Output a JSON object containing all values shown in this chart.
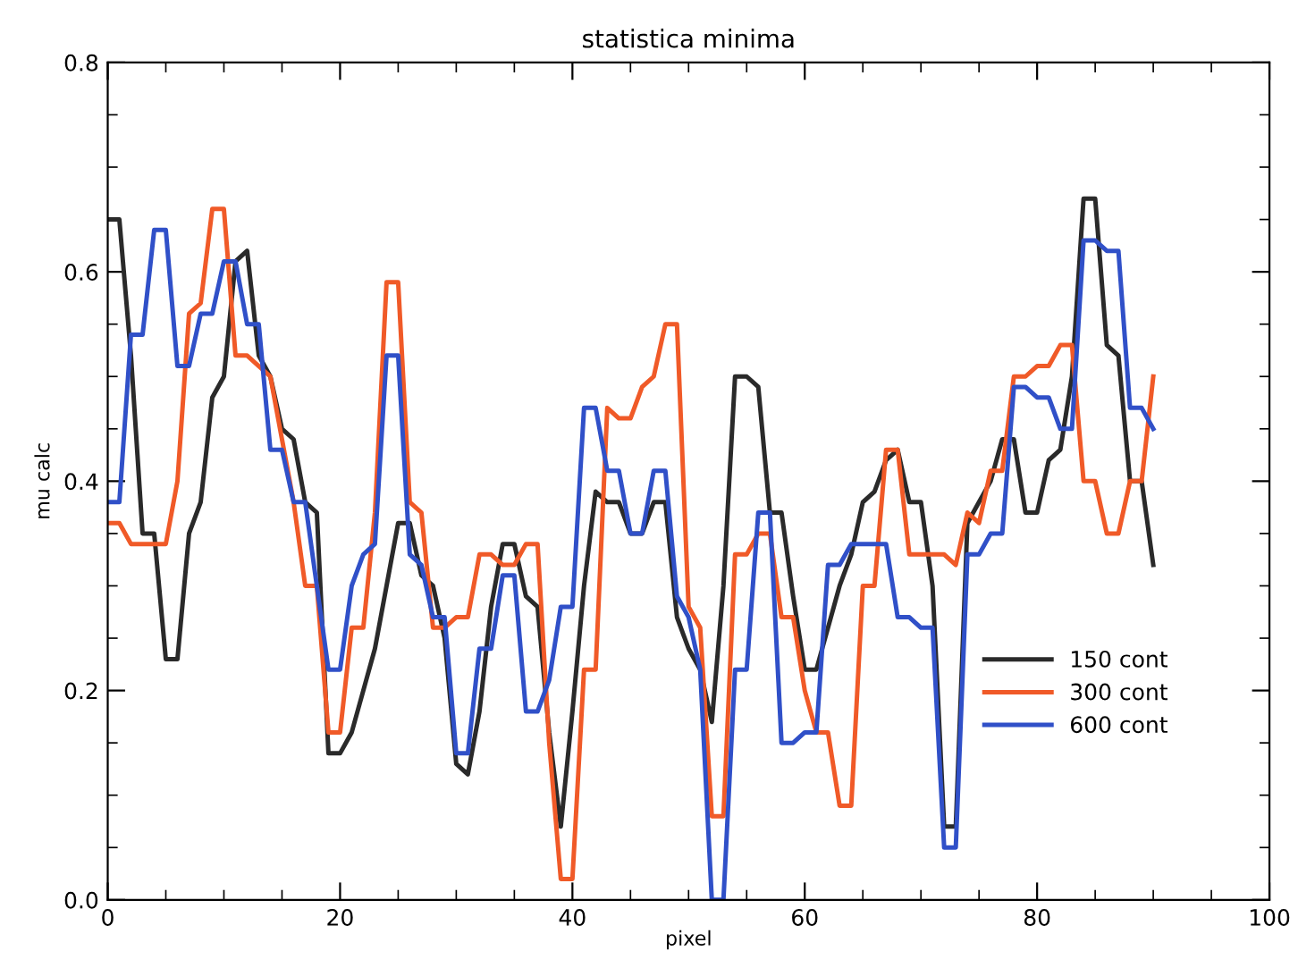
{
  "chart_data": {
    "type": "line",
    "title": "statistica minima",
    "xlabel": "pixel",
    "ylabel": "mu calc",
    "xlim": [
      0,
      100
    ],
    "xticks": [
      0,
      20,
      40,
      60,
      80,
      100
    ],
    "ylim": [
      0,
      0.8
    ],
    "yticks": [
      {
        "value": 0,
        "label": "0.0"
      },
      {
        "value": 0.2,
        "label": "0.2"
      },
      {
        "value": 0.4,
        "label": "0.4"
      },
      {
        "value": 0.6,
        "label": "0.6"
      },
      {
        "value": 0.8,
        "label": "0.8"
      }
    ],
    "grid": false,
    "legend": "bottom right",
    "marker": "none",
    "line_style": "solid",
    "x": [
      0,
      1,
      2,
      3,
      4,
      5,
      6,
      7,
      8,
      9,
      10,
      11,
      12,
      13,
      14,
      15,
      16,
      17,
      18,
      19,
      20,
      21,
      22,
      23,
      24,
      25,
      26,
      27,
      28,
      29,
      30,
      31,
      32,
      33,
      34,
      35,
      36,
      37,
      38,
      39,
      40,
      41,
      42,
      43,
      44,
      45,
      46,
      47,
      48,
      49,
      50,
      51,
      52,
      53,
      54,
      55,
      56,
      57,
      58,
      59,
      60,
      61,
      62,
      63,
      64,
      65,
      66,
      67,
      68,
      69,
      70,
      71,
      72,
      73,
      74,
      75,
      76,
      77,
      78,
      79,
      80,
      81,
      82,
      83,
      84,
      85,
      86,
      87,
      88,
      89,
      90
    ],
    "series": [
      {
        "name": "150 cont",
        "color": "#2a2a2a",
        "values": [
          0.65,
          0.65,
          0.52,
          0.35,
          0.35,
          0.23,
          0.23,
          0.35,
          0.38,
          0.48,
          0.5,
          0.61,
          0.62,
          0.52,
          0.5,
          0.45,
          0.44,
          0.38,
          0.37,
          0.14,
          0.14,
          0.16,
          0.2,
          0.24,
          0.3,
          0.36,
          0.36,
          0.31,
          0.3,
          0.25,
          0.13,
          0.12,
          0.18,
          0.28,
          0.34,
          0.34,
          0.29,
          0.28,
          0.16,
          0.07,
          0.18,
          0.3,
          0.39,
          0.38,
          0.38,
          0.35,
          0.35,
          0.38,
          0.38,
          0.27,
          0.24,
          0.22,
          0.17,
          0.3,
          0.5,
          0.5,
          0.49,
          0.37,
          0.37,
          0.29,
          0.22,
          0.22,
          0.26,
          0.3,
          0.33,
          0.38,
          0.39,
          0.42,
          0.43,
          0.38,
          0.38,
          0.3,
          0.07,
          0.07,
          0.36,
          0.38,
          0.4,
          0.44,
          0.44,
          0.37,
          0.37,
          0.42,
          0.43,
          0.5,
          0.67,
          0.67,
          0.53,
          0.52,
          0.4,
          0.4,
          0.32
        ]
      },
      {
        "name": "300 cont",
        "color": "#f05a28",
        "values": [
          0.36,
          0.36,
          0.34,
          0.34,
          0.34,
          0.34,
          0.4,
          0.56,
          0.57,
          0.66,
          0.66,
          0.52,
          0.52,
          0.51,
          0.5,
          0.44,
          0.38,
          0.3,
          0.3,
          0.16,
          0.16,
          0.26,
          0.26,
          0.37,
          0.59,
          0.59,
          0.38,
          0.37,
          0.26,
          0.26,
          0.27,
          0.27,
          0.33,
          0.33,
          0.32,
          0.32,
          0.34,
          0.34,
          0.15,
          0.02,
          0.02,
          0.22,
          0.22,
          0.47,
          0.46,
          0.46,
          0.49,
          0.5,
          0.55,
          0.55,
          0.28,
          0.26,
          0.08,
          0.08,
          0.33,
          0.33,
          0.35,
          0.35,
          0.27,
          0.27,
          0.2,
          0.16,
          0.16,
          0.09,
          0.09,
          0.3,
          0.3,
          0.43,
          0.43,
          0.33,
          0.33,
          0.33,
          0.33,
          0.32,
          0.37,
          0.36,
          0.41,
          0.41,
          0.5,
          0.5,
          0.51,
          0.51,
          0.53,
          0.53,
          0.4,
          0.4,
          0.35,
          0.35,
          0.4,
          0.4,
          0.5
        ]
      },
      {
        "name": "600 cont",
        "color": "#3050c8",
        "values": [
          0.38,
          0.38,
          0.54,
          0.54,
          0.64,
          0.64,
          0.51,
          0.51,
          0.56,
          0.56,
          0.61,
          0.61,
          0.55,
          0.55,
          0.43,
          0.43,
          0.38,
          0.38,
          0.3,
          0.22,
          0.22,
          0.3,
          0.33,
          0.34,
          0.52,
          0.52,
          0.33,
          0.32,
          0.27,
          0.27,
          0.14,
          0.14,
          0.24,
          0.24,
          0.31,
          0.31,
          0.18,
          0.18,
          0.21,
          0.28,
          0.28,
          0.47,
          0.47,
          0.41,
          0.41,
          0.35,
          0.35,
          0.41,
          0.41,
          0.29,
          0.27,
          0.22,
          0.0,
          0.0,
          0.22,
          0.22,
          0.37,
          0.37,
          0.15,
          0.15,
          0.16,
          0.16,
          0.32,
          0.32,
          0.34,
          0.34,
          0.34,
          0.34,
          0.27,
          0.27,
          0.26,
          0.26,
          0.05,
          0.05,
          0.33,
          0.33,
          0.35,
          0.35,
          0.49,
          0.49,
          0.48,
          0.48,
          0.45,
          0.45,
          0.63,
          0.63,
          0.62,
          0.62,
          0.47,
          0.47,
          0.45
        ]
      }
    ]
  }
}
